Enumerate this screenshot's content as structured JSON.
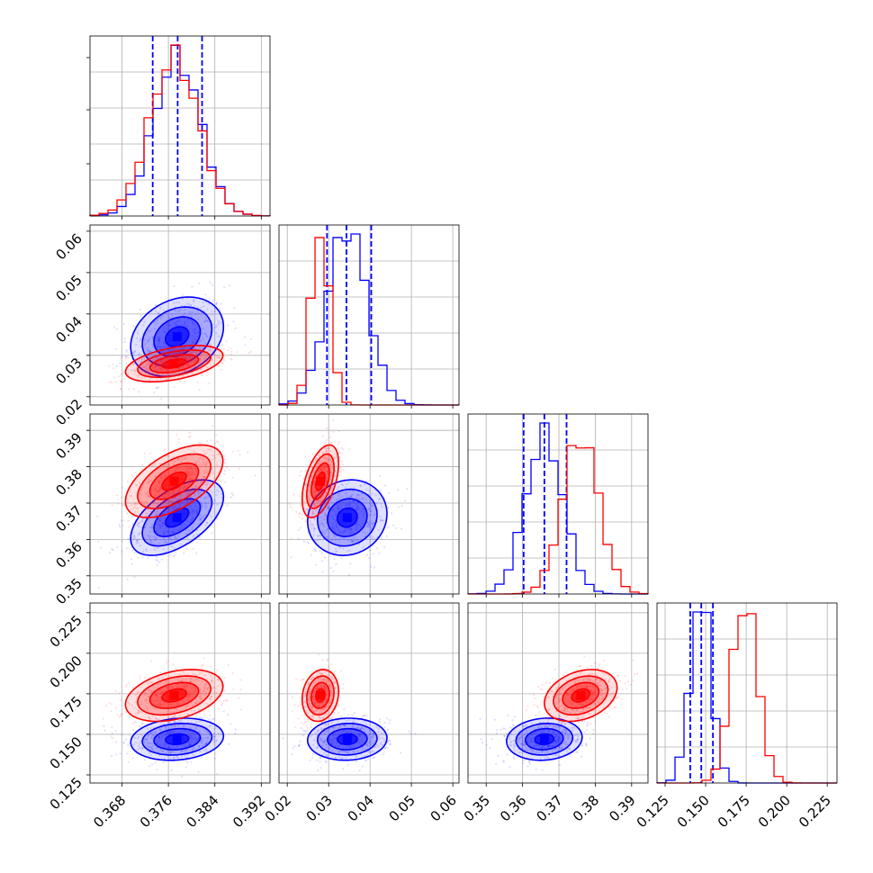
{
  "chart_data": {
    "type": "corner",
    "title": "",
    "parameters": [
      {
        "ticks": [
          0.368,
          0.376,
          0.384,
          0.392
        ],
        "tick_labels": [
          "0.368",
          "0.376",
          "0.384",
          "0.392"
        ],
        "range": [
          0.3625,
          0.3935
        ],
        "log_scale": false
      },
      {
        "ticks": [
          0.02,
          0.03,
          0.04,
          0.05,
          0.06
        ],
        "tick_labels": [
          "0.02",
          "0.03",
          "0.04",
          "0.05",
          "0.06"
        ],
        "range": [
          0.018,
          0.0615
        ],
        "log_scale": false
      },
      {
        "ticks": [
          0.35,
          0.36,
          0.37,
          0.38,
          0.39
        ],
        "tick_labels": [
          "0.35",
          "0.36",
          "0.37",
          "0.38",
          "0.39"
        ],
        "range": [
          0.345,
          0.3945
        ],
        "log_scale": false
      },
      {
        "ticks": [
          0.125,
          0.15,
          0.175,
          0.2,
          0.225
        ],
        "tick_labels": [
          "0.125",
          "0.150",
          "0.175",
          "0.200",
          "0.225"
        ],
        "range": [
          0.12,
          0.231
        ],
        "log_scale": false
      }
    ],
    "grid": true,
    "legend": "none",
    "series": [
      {
        "color": "#0000ff",
        "means": [
          0.3775,
          0.0345,
          0.366,
          0.147
        ],
        "sigmas": [
          0.004,
          0.0048,
          0.0052,
          0.0065
        ],
        "correlations": [
          [
            0,
            1,
            0.25
          ],
          [
            0,
            2,
            0.55
          ],
          [
            0,
            3,
            0.15
          ],
          [
            1,
            2,
            0.1
          ],
          [
            1,
            3,
            0.05
          ],
          [
            2,
            3,
            0.1
          ]
        ],
        "quantiles": [
          [
            0.3733,
            0.3776,
            0.3818
          ],
          [
            0.0296,
            0.0343,
            0.0403
          ],
          [
            0.3603,
            0.366,
            0.3721
          ],
          [
            0.1405,
            0.1473,
            0.1545
          ]
        ]
      },
      {
        "color": "#ff0000",
        "means": [
          0.377,
          0.028,
          0.376,
          0.174
        ],
        "sigmas": [
          0.0042,
          0.0022,
          0.005,
          0.008
        ],
        "correlations": [
          [
            0,
            1,
            0.45
          ],
          [
            0,
            2,
            0.55
          ],
          [
            0,
            3,
            0.35
          ],
          [
            1,
            2,
            0.5
          ],
          [
            1,
            3,
            0.15
          ],
          [
            2,
            3,
            0.3
          ]
        ]
      }
    ],
    "contour_levels_sigma": [
      0.5,
      1.0,
      1.5,
      2.0
    ]
  }
}
